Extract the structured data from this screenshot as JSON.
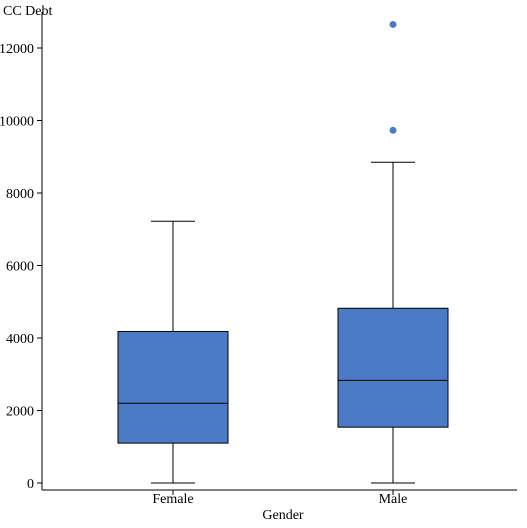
{
  "chart_data": {
    "type": "box",
    "xlabel": "Gender",
    "ylabel": "CC Debt",
    "ylim": [
      -200,
      12800
    ],
    "yticks": [
      0,
      2000,
      4000,
      6000,
      8000,
      10000,
      12000
    ],
    "grid": false,
    "categories": [
      "Female",
      "Male"
    ],
    "series": [
      {
        "category": "Female",
        "min": 0,
        "q1": 1100,
        "median": 2200,
        "q3": 4180,
        "max": 7220,
        "outliers": []
      },
      {
        "category": "Male",
        "min": 0,
        "q1": 1540,
        "median": 2830,
        "q3": 4820,
        "max": 8850,
        "outliers": [
          9730,
          12650
        ]
      }
    ],
    "colors": {
      "box_fill": "#4a7bc4",
      "outlier": "#4a7bc4",
      "stroke": "#000000",
      "axis": "#000000"
    }
  }
}
